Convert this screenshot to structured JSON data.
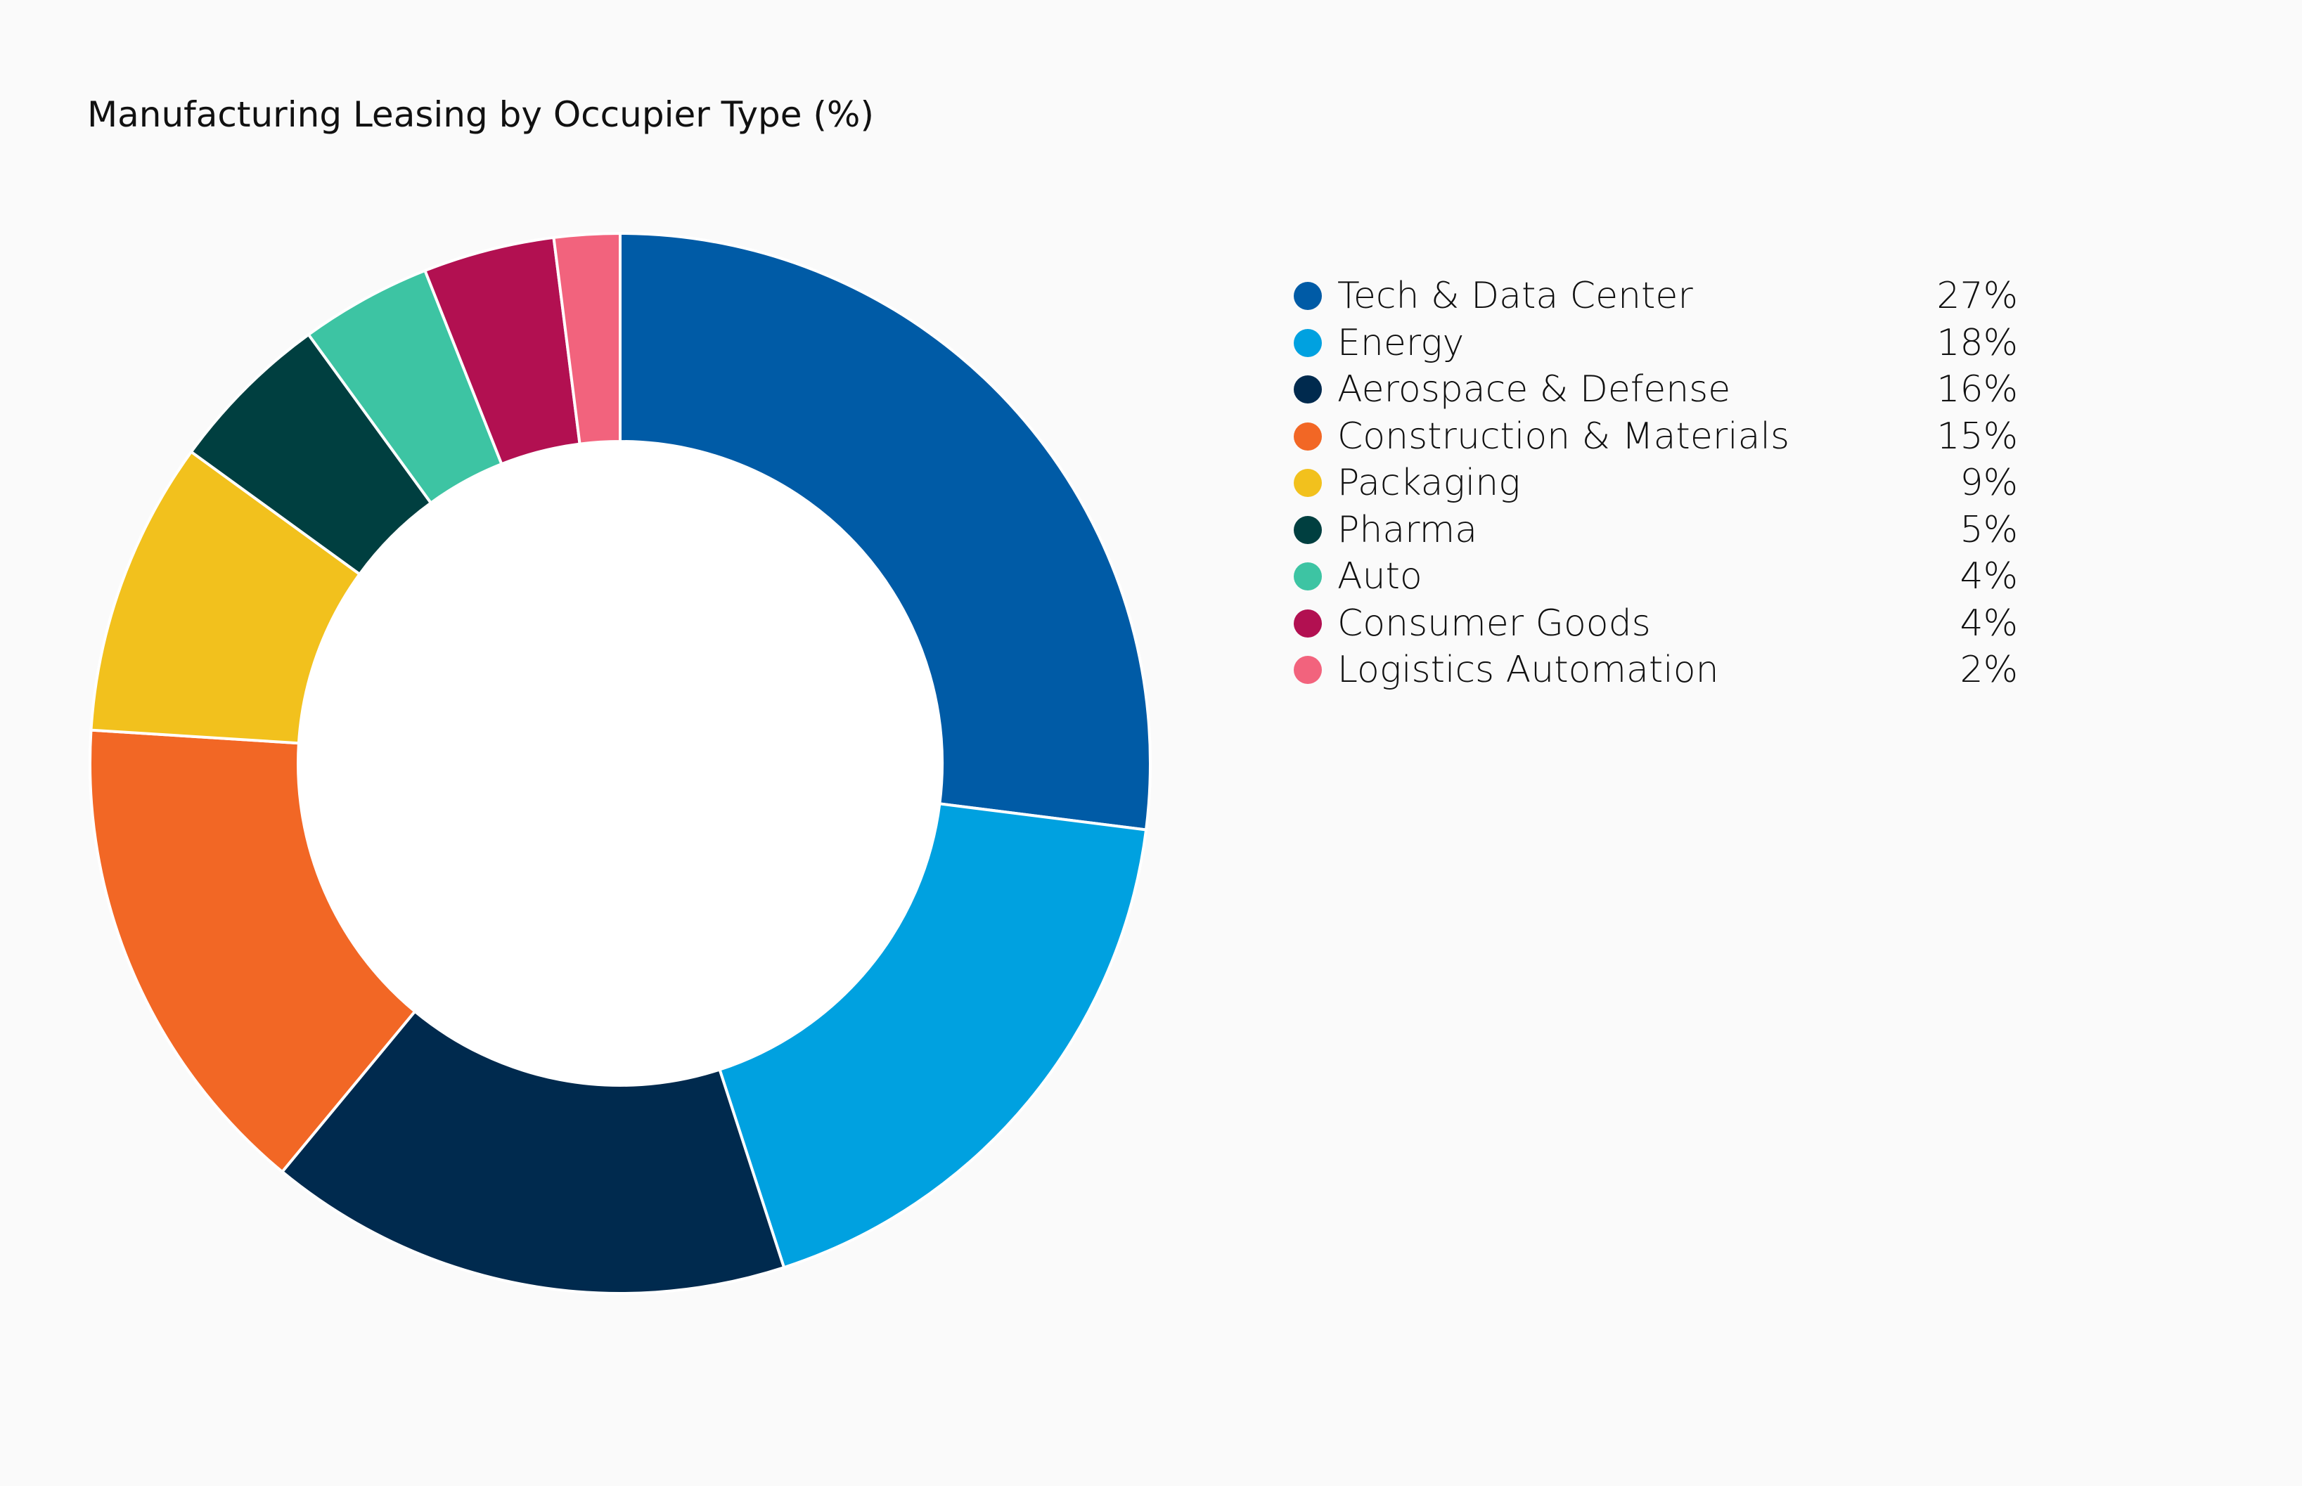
{
  "chart_data": {
    "type": "pie",
    "variant": "donut",
    "title": "Manufacturing Leasing by Occupier Type (%)",
    "legend_position": "right",
    "start_angle": "top",
    "direction": "clockwise",
    "slices": [
      {
        "label": "Tech & Data Center",
        "value": 27,
        "display": "27%",
        "color": "#005ba6"
      },
      {
        "label": "Energy",
        "value": 18,
        "display": "18%",
        "color": "#00a1e0"
      },
      {
        "label": "Aerospace & Defense",
        "value": 16,
        "display": "16%",
        "color": "#002a4e"
      },
      {
        "label": "Construction & Materials",
        "value": 15,
        "display": "15%",
        "color": "#f26725"
      },
      {
        "label": "Packaging",
        "value": 9,
        "display": "9%",
        "color": "#f2c11d"
      },
      {
        "label": "Pharma",
        "value": 5,
        "display": "5%",
        "color": "#003f40"
      },
      {
        "label": "Auto",
        "value": 4,
        "display": "4%",
        "color": "#3dc4a3"
      },
      {
        "label": "Consumer Goods",
        "value": 4,
        "display": "4%",
        "color": "#b21051"
      },
      {
        "label": "Logistics Automation",
        "value": 2,
        "display": "2%",
        "color": "#f2637d"
      }
    ]
  }
}
